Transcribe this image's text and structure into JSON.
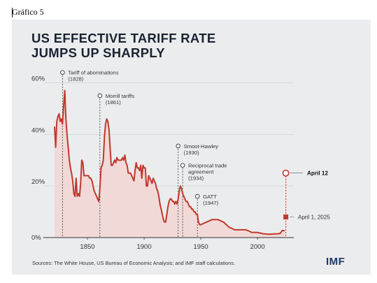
{
  "caption": "Gráfico 5",
  "chart_data": {
    "type": "line",
    "title": [
      "US EFFECTIVE TARIFF RATE",
      "JUMPS UP SHARPLY"
    ],
    "xlim": [
      1821,
      2032
    ],
    "ylim": [
      0,
      65
    ],
    "x_ticks": [
      1850,
      1900,
      1950,
      2000
    ],
    "x_tick_labels": [
      "1850",
      "1900",
      "1950",
      "2000"
    ],
    "y_ticks": [
      0,
      20,
      40,
      60
    ],
    "y_tick_labels": [
      "0%",
      "20%",
      "40%",
      "60%"
    ],
    "grid": "horizontal",
    "series": [
      {
        "name": "",
        "color": "#c0392b",
        "x": [
          1821,
          1822,
          1823,
          1824,
          1825,
          1826,
          1827,
          1828,
          1829,
          1830,
          1831,
          1832,
          1833,
          1834,
          1835,
          1836,
          1837,
          1838,
          1839,
          1840,
          1841,
          1842,
          1843,
          1844,
          1845,
          1846,
          1847,
          1848,
          1849,
          1850,
          1851,
          1852,
          1853,
          1854,
          1855,
          1856,
          1857,
          1858,
          1859,
          1860,
          1861,
          1862,
          1863,
          1864,
          1865,
          1866,
          1867,
          1868,
          1869,
          1870,
          1871,
          1872,
          1873,
          1874,
          1875,
          1876,
          1877,
          1878,
          1879,
          1880,
          1881,
          1882,
          1883,
          1884,
          1885,
          1886,
          1887,
          1888,
          1889,
          1890,
          1891,
          1892,
          1893,
          1894,
          1895,
          1896,
          1897,
          1898,
          1899,
          1900,
          1901,
          1902,
          1903,
          1904,
          1905,
          1906,
          1907,
          1908,
          1909,
          1910,
          1911,
          1912,
          1913,
          1914,
          1915,
          1916,
          1917,
          1918,
          1919,
          1920,
          1921,
          1922,
          1923,
          1924,
          1925,
          1926,
          1927,
          1928,
          1929,
          1930,
          1931,
          1932,
          1933,
          1934,
          1935,
          1936,
          1937,
          1938,
          1939,
          1940,
          1941,
          1942,
          1943,
          1944,
          1945,
          1946,
          1947,
          1948,
          1949,
          1950,
          1955,
          1960,
          1965,
          1970,
          1975,
          1980,
          1985,
          1990,
          1995,
          2000,
          2005,
          2010,
          2015,
          2018,
          2020,
          2022,
          2023,
          2024
        ],
        "values": [
          43,
          35,
          45,
          47,
          48,
          45,
          46,
          44,
          51,
          57,
          46,
          40,
          35,
          30,
          27,
          25,
          22,
          17,
          16,
          23,
          16,
          17,
          16,
          21,
          30,
          29,
          24,
          24,
          24,
          24,
          24,
          23,
          23,
          22,
          20,
          18,
          17,
          16,
          15,
          14,
          19,
          27,
          28,
          30,
          39,
          44,
          46,
          45,
          42,
          35,
          28,
          28,
          29,
          30,
          29,
          31,
          30,
          30,
          30,
          30,
          31,
          30,
          32,
          29,
          28,
          25,
          25,
          25,
          24,
          23,
          22,
          26,
          29,
          27,
          27,
          26,
          28,
          23,
          28,
          27,
          27,
          20,
          20,
          24,
          23,
          22,
          21,
          23,
          22,
          21,
          19,
          18,
          16,
          13,
          11,
          9,
          7,
          6,
          6,
          9,
          12,
          14,
          15,
          15,
          14,
          14,
          13,
          14,
          13,
          15,
          18,
          20,
          19,
          17,
          16,
          15,
          14,
          14,
          13,
          12,
          12,
          11,
          11,
          10,
          10,
          9,
          9,
          6,
          5,
          5,
          6,
          7,
          7,
          6,
          4,
          3,
          3,
          3,
          2,
          2,
          1.5,
          1.3,
          1.4,
          1.5,
          1.6,
          2.8,
          2.7,
          2.6
        ]
      }
    ],
    "points": [
      {
        "label": "April 1, 2025",
        "x": 2025,
        "y": 8,
        "style": "filled-square"
      },
      {
        "label": "April 12",
        "x": 2025,
        "y": 25,
        "style": "open-circle"
      }
    ],
    "annotations": [
      {
        "lines": [
          "Tariff of abominations",
          "(1828)"
        ],
        "x": 1828,
        "y": 64
      },
      {
        "lines": [
          "Morrill tariffs",
          "(1861)"
        ],
        "x": 1861,
        "y": 55
      },
      {
        "lines": [
          "Smoot-Hawley",
          "(1930)"
        ],
        "x": 1930,
        "y": 35.5
      },
      {
        "lines": [
          "Reciprocal trade",
          "agreement",
          "(1934)"
        ],
        "x": 1934,
        "y": 28
      },
      {
        "lines": [
          "GATT",
          "(1947)"
        ],
        "x": 1947,
        "y": 16
      }
    ]
  },
  "footer": {
    "source": "Sources: The White House, US Bureau of Economic Analysis; and IMF staff calculations.",
    "logo": "IMF"
  }
}
